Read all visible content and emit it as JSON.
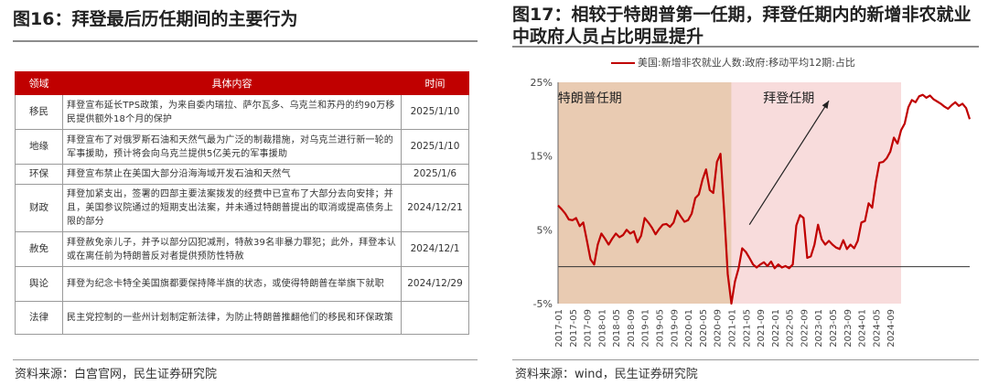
{
  "left": {
    "title": "图16：拜登最后历任期间的主要行为",
    "headers": [
      "领域",
      "具体内容",
      "时间"
    ],
    "rows": [
      {
        "field": "移民",
        "content": "拜登宣布延长TPS政策，为来自委内瑞拉、萨尔瓦多、乌克兰和苏丹的约90万移民提供额外18个月的保护",
        "date": "2025/1/10"
      },
      {
        "field": "地缘",
        "content": "拜登宣布了对俄罗斯石油和天然气最为广泛的制裁措施，对乌克兰进行新一轮的军事援助，预计将会向乌克兰提供5亿美元的军事援助",
        "date": "2025/1/10"
      },
      {
        "field": "环保",
        "content": "拜登宣布禁止在美国大部分沿海海域开发石油和天然气",
        "date": "2025/1/6"
      },
      {
        "field": "财政",
        "content": "拜登加紧支出，签署的四部主要法案拨发的经费中已宣布了大部分去向安排；并且，美国参议院通过的短期支出法案，并未通过特朗普提出的取消或提高债务上限的部分",
        "date": "2024/12/21"
      },
      {
        "field": "赦免",
        "content": "拜登赦免亲儿子，并予以部分囚犯减刑，特赦39名非暴力罪犯；此外，拜登本认或在离任前为特朗普反对者提供预防性特赦",
        "date": "2024/12/1"
      },
      {
        "field": "舆论",
        "content": "拜登为纪念卡特全美国旗都要保持降半旗的状态，或使得特朗普在举旗下就职",
        "date": "2024/12/29"
      },
      {
        "field": "法律",
        "content": "民主党控制的一些州计划制定新法律，为防止特朗普推翻他们的移民和环保政策",
        "date": ""
      }
    ],
    "source": "资料来源：白宫官网，民生证券研究院"
  },
  "right": {
    "title": "图17：相较于特朗普第一任期，拜登任期内的新增非农就业中政府人员占比明显提升",
    "source": "资料来源：wind，民生证券研究院"
  },
  "chart_data": {
    "type": "line",
    "series": [
      {
        "name": "美国:新增非农就业人数:政府:移动平均12期:占比",
        "color": "#c00000",
        "values": [
          8.3,
          7.8,
          7.2,
          6.4,
          6.3,
          6.6,
          5.5,
          6.0,
          3.5,
          1.0,
          0.3,
          3.0,
          4.5,
          3.8,
          3.0,
          3.8,
          4.5,
          4.0,
          4.3,
          5.0,
          4.5,
          4.8,
          3.3,
          4.2,
          6.6,
          6.0,
          5.3,
          4.4,
          5.1,
          5.7,
          5.8,
          5.4,
          6.0,
          7.6,
          6.8,
          6.1,
          6.3,
          7.2,
          9.3,
          9.8,
          11.8,
          13.2,
          10.4,
          10.0,
          14.2,
          15.3,
          7.5,
          -1.0,
          -5.0,
          -2.0,
          -0.2,
          2.5,
          2.0,
          1.2,
          0.3,
          -0.1,
          0.3,
          0.6,
          0.1,
          0.7,
          -0.2,
          0.3,
          -0.1,
          0.1,
          -0.2,
          0.3,
          5.6,
          7.0,
          6.6,
          1.2,
          1.4,
          3.0,
          5.7,
          3.7,
          3.0,
          3.5,
          3.0,
          2.6,
          2.4,
          3.6,
          2.4,
          3.0,
          2.5,
          3.5,
          6.0,
          6.2,
          8.6,
          8.0,
          11.5,
          14.1,
          14.2,
          14.7,
          15.6,
          17.5,
          16.7,
          18.5,
          19.4,
          21.6,
          22.6,
          22.3,
          23.1,
          23.3,
          22.9,
          23.2,
          22.7,
          22.4,
          22.1,
          21.7,
          21.4,
          21.9,
          22.3,
          21.8,
          22.1,
          21.5,
          20.0
        ]
      }
    ],
    "x_start": "2017-01",
    "x_step_months": 1,
    "x_tick_labels": [
      "2017-01",
      "2017-05",
      "2017-09",
      "2018-01",
      "2018-05",
      "2018-09",
      "2019-01",
      "2019-05",
      "2019-09",
      "2020-01",
      "2020-05",
      "2020-09",
      "2021-01",
      "2021-05",
      "2021-09",
      "2022-01",
      "2022-05",
      "2022-09",
      "2023-01",
      "2023-05",
      "2023-09",
      "2024-01",
      "2024-05",
      "2024-09"
    ],
    "y_ticks": [
      25,
      15,
      5,
      -5
    ],
    "y_tick_labels": [
      "25%",
      "15%",
      "5%",
      "-5%"
    ],
    "ylim": [
      -5,
      25
    ],
    "shaded_regions": [
      {
        "label": "特朗普任期",
        "start": "2017-01",
        "end": "2021-01",
        "color": "#e9cbb2"
      },
      {
        "label": "拜登任期",
        "start": "2021-01",
        "end": "2024-12",
        "color": "#f8dcdc"
      }
    ],
    "arrow": {
      "from": [
        "2021-06",
        5.7
      ],
      "to": [
        "2023-04",
        22.5
      ]
    }
  }
}
